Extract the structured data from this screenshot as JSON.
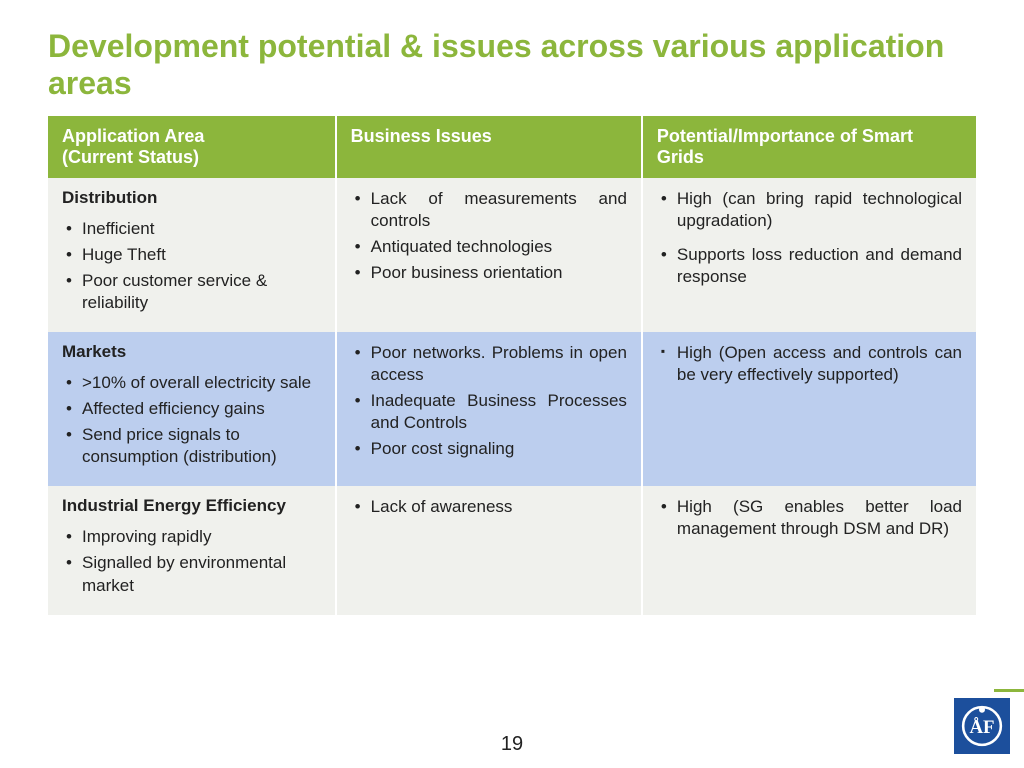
{
  "colors": {
    "title": "#8cb63c",
    "header_bg": "#8cb63c",
    "row_light": "#f0f1ed",
    "row_blue": "#bcceee",
    "logo_bg": "#1c4f9c"
  },
  "title": "Development potential & issues across various application areas",
  "page_number": "19",
  "table": {
    "col_widths": [
      "31%",
      "33%",
      "36%"
    ],
    "headers": [
      "Application Area\n(Current Status)",
      "Business Issues",
      "Potential/Importance  of Smart Grids"
    ],
    "rows": [
      {
        "bg": "#f0f1ed",
        "area_title": "Distribution",
        "area_bullets": [
          "Inefficient",
          "Huge Theft",
          "Poor customer service & reliability"
        ],
        "issues_bullets": [
          "Lack of measurements and controls",
          "Antiquated technologies",
          "Poor business orientation"
        ],
        "issues_justify": true,
        "potential_bullets": [
          "High (can bring rapid technological upgradation)",
          "Supports loss reduction and demand response"
        ],
        "potential_justify": true,
        "potential_gap": true,
        "potential_marker": "dot"
      },
      {
        "bg": "#bcceee",
        "area_title": "Markets",
        "area_bullets": [
          ">10% of overall electricity sale",
          "Affected efficiency gains",
          "Send price signals to consumption (distribution)"
        ],
        "issues_bullets": [
          "Poor networks. Problems in open access",
          "Inadequate Business Processes and Controls",
          "Poor cost signaling"
        ],
        "issues_justify": true,
        "potential_bullets": [
          "High (Open access and controls can be very effectively supported)"
        ],
        "potential_justify": true,
        "potential_gap": false,
        "potential_marker": "square"
      },
      {
        "bg": "#f0f1ed",
        "area_title": "Industrial Energy Efficiency",
        "area_bullets": [
          "Improving rapidly",
          "Signalled by environmental market"
        ],
        "issues_bullets": [
          "Lack of awareness"
        ],
        "issues_justify": false,
        "potential_bullets": [
          "High (SG enables better load management through DSM and DR)"
        ],
        "potential_justify": true,
        "potential_gap": false,
        "potential_marker": "dot"
      }
    ]
  }
}
